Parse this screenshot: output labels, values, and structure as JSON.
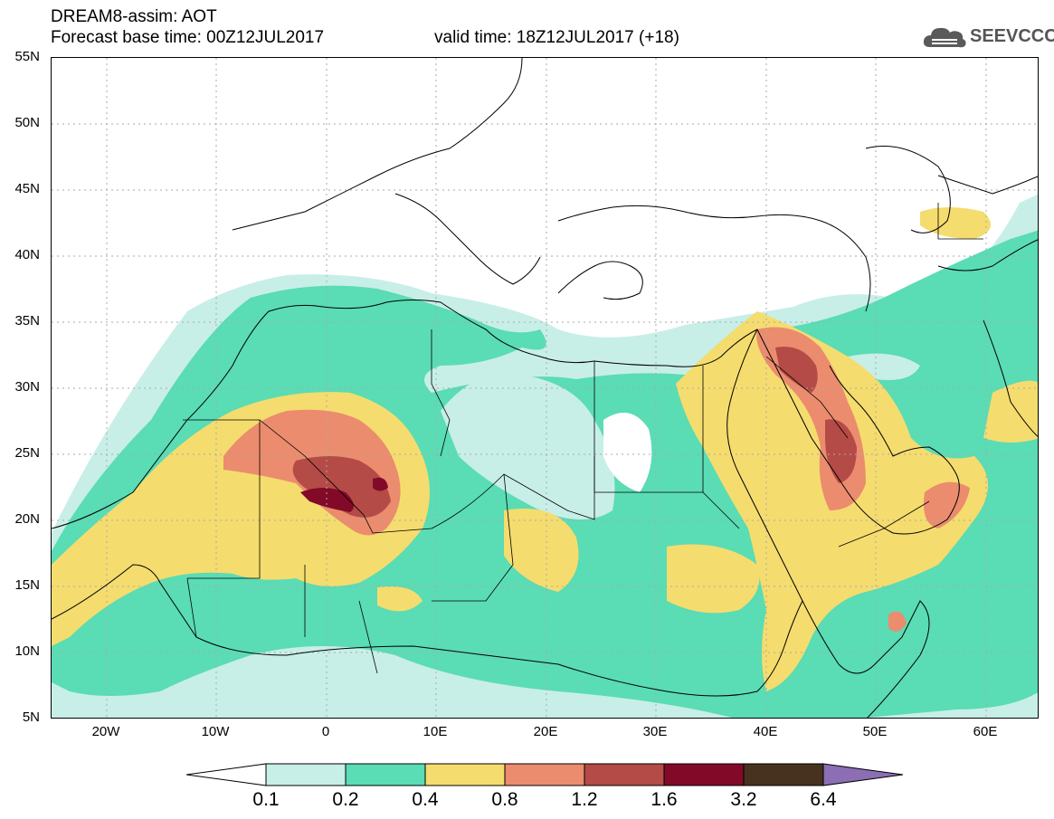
{
  "header": {
    "title": "DREAM8-assim: AOT",
    "base_time": "Forecast base time: 00Z12JUL2017",
    "valid_time": "valid time: 18Z12JUL2017 (+18)"
  },
  "logo": {
    "text": "SEEVCCC",
    "icon": "cloud-icon"
  },
  "map": {
    "lat_labels": [
      "55N",
      "50N",
      "45N",
      "40N",
      "35N",
      "30N",
      "25N",
      "20N",
      "15N",
      "10N",
      "5N"
    ],
    "lon_labels": [
      "20W",
      "10W",
      "0",
      "10E",
      "20E",
      "30E",
      "40E",
      "50E",
      "60E"
    ],
    "colors": {
      "c01": "#c8eee8",
      "c02": "#5adcb4",
      "c04": "#f5dc6e",
      "c08": "#eb8c6e",
      "c12": "#b44b46",
      "c16": "#820a28",
      "c32": "#46321e",
      "c64": "#8c6eb4",
      "border": "#000000",
      "grid": "#aaaaaa"
    }
  },
  "colorbar": {
    "labels": [
      "0.1",
      "0.2",
      "0.4",
      "0.8",
      "1.2",
      "1.6",
      "3.2",
      "6.4"
    ],
    "colors": [
      "#c8eee8",
      "#5adcb4",
      "#f5dc6e",
      "#eb8c6e",
      "#b44b46",
      "#820a28",
      "#46321e"
    ],
    "under_color": "#ffffff",
    "over_color": "#8c6eb4"
  }
}
